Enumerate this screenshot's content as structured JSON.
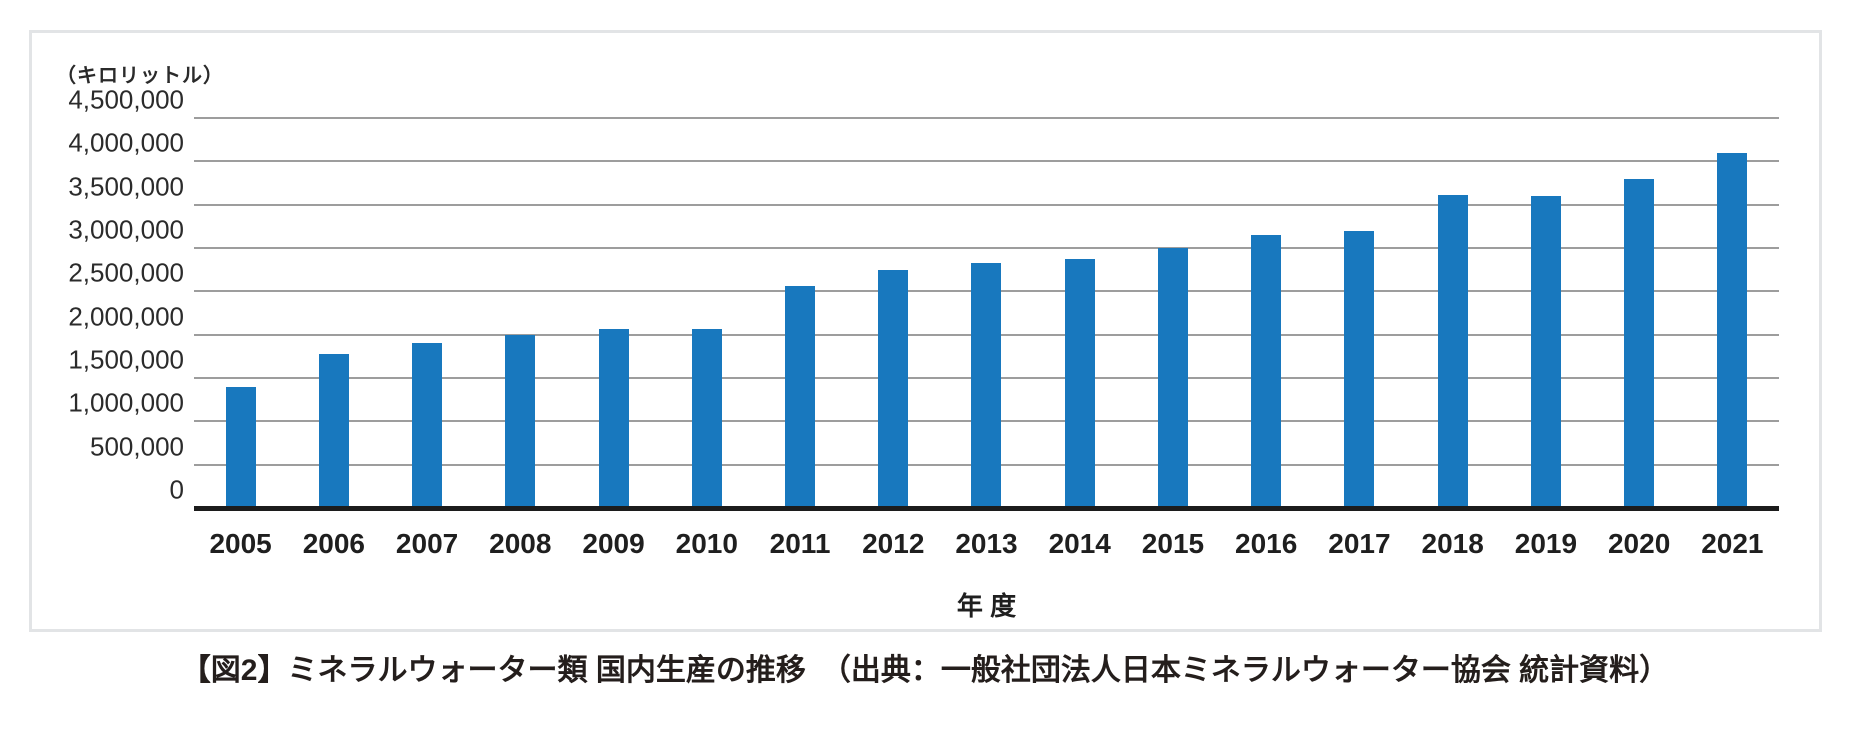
{
  "page": {
    "caption": "【図2】ミネラルウォーター類 国内生産の推移　（出典：一般社団法人日本ミネラルウォーター協会 統計資料）"
  },
  "chart_data": {
    "type": "bar",
    "title": "",
    "unit_label": "（キロリットル）",
    "xlabel": "年 度",
    "ylabel": "（キロリットル）",
    "categories": [
      "2005",
      "2006",
      "2007",
      "2008",
      "2009",
      "2010",
      "2011",
      "2012",
      "2013",
      "2014",
      "2015",
      "2016",
      "2017",
      "2018",
      "2019",
      "2020",
      "2021"
    ],
    "values": [
      1400000,
      1780000,
      1900000,
      2000000,
      2070000,
      2070000,
      2560000,
      2750000,
      2830000,
      2870000,
      3000000,
      3150000,
      3200000,
      3610000,
      3600000,
      3800000,
      4100000
    ],
    "ylim": [
      0,
      4500000
    ],
    "ytick_step": 500000,
    "ytick_labels": [
      "0",
      "500,000",
      "1,000,000",
      "1,500,000",
      "2,000,000",
      "2,500,000",
      "3,000,000",
      "3,500,000",
      "4,000,000",
      "4,500,000"
    ],
    "grid": "horizontal",
    "legend": "none",
    "bar_color": "#1878be",
    "gridline_color": "#9d9d9d",
    "axis_color": "#1c1c1c"
  }
}
